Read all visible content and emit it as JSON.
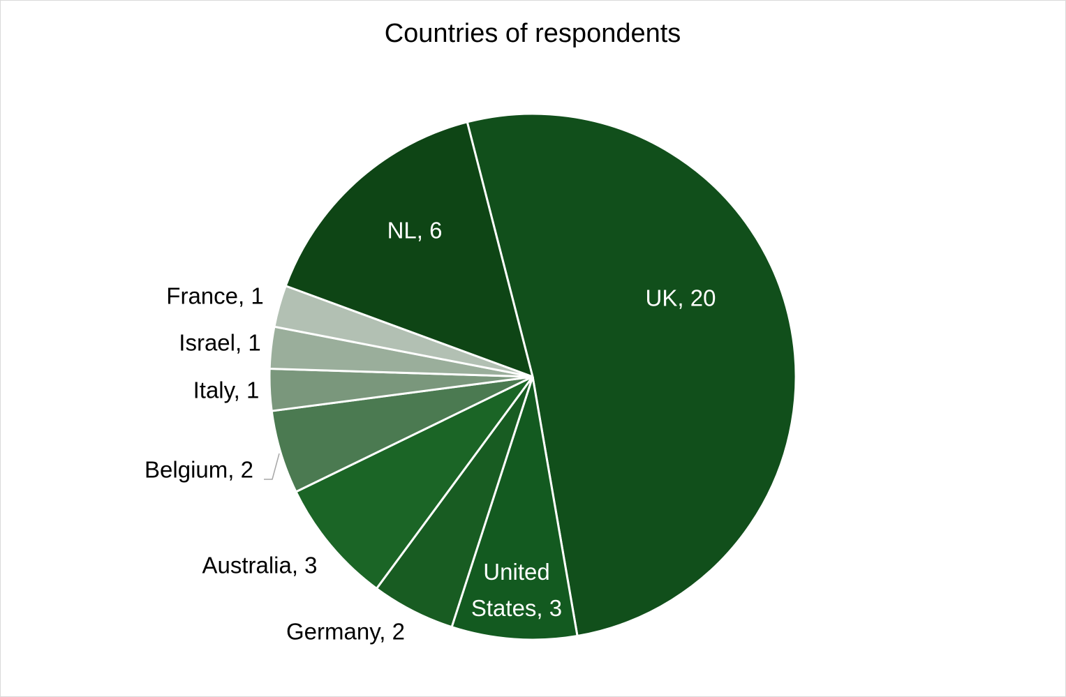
{
  "chart_data": {
    "type": "pie",
    "title": "Countries of respondents",
    "categories": [
      "UK",
      "United States",
      "Germany",
      "Australia",
      "Belgium",
      "Italy",
      "Israel",
      "France",
      "NL"
    ],
    "values": [
      20,
      3,
      2,
      3,
      2,
      1,
      1,
      1,
      6
    ],
    "value_labels": [
      "UK, 20",
      "United States, 3",
      "Germany, 2",
      "Australia, 3",
      "Belgium, 2",
      "Italy, 1",
      "Israel, 1",
      "France, 1",
      "NL, 6"
    ],
    "colors": [
      "#114f1b",
      "#135a20",
      "#185c22",
      "#1b6526",
      "#4b7a51",
      "#7a977c",
      "#9aae9b",
      "#b2c0b3",
      "#0e4515"
    ]
  }
}
